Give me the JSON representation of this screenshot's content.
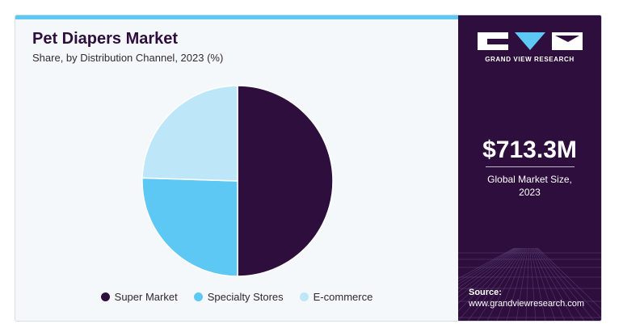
{
  "chart_data": {
    "type": "pie",
    "title": "Pet Diapers Market",
    "subtitle": "Share, by Distribution Channel, 2023 (%)",
    "slices": [
      {
        "label": "Super Market",
        "value": 50,
        "color": "#2e0e3d"
      },
      {
        "label": "Specialty Stores",
        "value": 25.5,
        "color": "#5ec8f5"
      },
      {
        "label": "E-commerce",
        "value": 24.5,
        "color": "#bde7f8"
      }
    ],
    "legend_position": "bottom"
  },
  "sidebar": {
    "brand": "GRAND VIEW RESEARCH",
    "market_size": "$713.3M",
    "market_caption": "Global Market Size,\n2023",
    "source_label": "Source:",
    "source_url": "www.grandviewresearch.com"
  },
  "colors": {
    "accent_bar": "#5ec8f5",
    "sidebar_bg": "#2e0e3d"
  }
}
